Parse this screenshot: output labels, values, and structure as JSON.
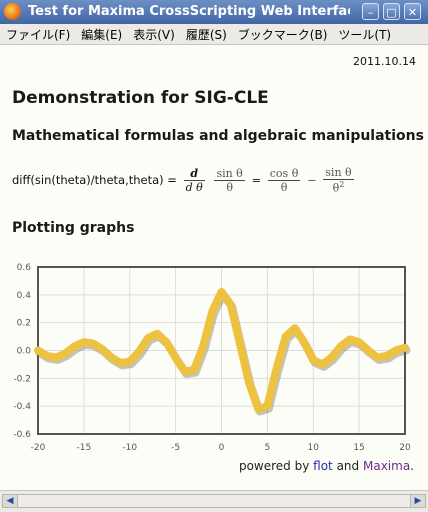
{
  "window": {
    "title": "Test for Maxima CrossScripting Web Interface",
    "minimize_glyph": "–",
    "maximize_glyph": "□",
    "close_glyph": "✕"
  },
  "menu": [
    "ファイル(F)",
    "編集(E)",
    "表示(V)",
    "履歴(S)",
    "ブックマーク(B)",
    "ツール(T)"
  ],
  "page": {
    "date": "2011.10.14",
    "heading": "Demonstration for SIG-CLE",
    "section1_heading": "Mathematical formulas and algebraic manipulations",
    "formula": {
      "input": "diff(sin(theta)/theta,theta) =",
      "d_num": "d",
      "d_den": "d θ",
      "sin_num": "sin θ",
      "sin_den": "θ",
      "eq": "=",
      "cos_num": "cos θ",
      "cos_den": "θ",
      "minus": "−",
      "sin2_num": "sin θ",
      "sin2_den": "θ",
      "exp": "2"
    },
    "section2_heading": "Plotting graphs",
    "powered": {
      "prefix": "powered by",
      "flot": "flot",
      "and": "and",
      "maxima": "Maxima",
      "suffix": "."
    }
  },
  "colors": {
    "series": "#edc240",
    "shadow": "#555555",
    "grid": "#dddddd",
    "frame": "#545454",
    "flot_link": "#2233aa",
    "maxima_link": "#6a2a8a"
  },
  "chart_data": {
    "type": "line",
    "function": "sin(x)/x shifted",
    "xlim": [
      -20,
      20
    ],
    "ylim": [
      -0.6,
      0.6
    ],
    "xticks": [
      -20,
      -15,
      -10,
      -5,
      0,
      5,
      10,
      15,
      20
    ],
    "yticks": [
      0.6,
      0.4,
      0.2,
      0.0,
      -0.2,
      -0.4,
      -0.6
    ],
    "ytick_labels": [
      "0.6",
      "0.4",
      "0.2",
      "0.0",
      "-0.2",
      "-0.4",
      "-0.6"
    ],
    "grid": true,
    "series": [
      {
        "x": [
          -20,
          -19,
          -18,
          -17,
          -16,
          -15,
          -14,
          -13,
          -12,
          -11,
          -10,
          -9,
          -8,
          -7,
          -6,
          -5,
          -4,
          -3,
          -2,
          -1,
          0,
          1,
          2,
          3,
          4,
          5,
          6,
          7,
          8,
          9,
          10,
          11,
          12,
          13,
          14,
          15,
          16,
          17,
          18,
          19,
          20
        ],
        "y": [
          0.0,
          -0.04,
          -0.05,
          -0.02,
          0.03,
          0.06,
          0.05,
          0.01,
          -0.05,
          -0.09,
          -0.08,
          -0.01,
          0.09,
          0.12,
          0.06,
          -0.05,
          -0.15,
          -0.14,
          0.03,
          0.28,
          0.42,
          0.33,
          0.05,
          -0.23,
          -0.42,
          -0.4,
          -0.13,
          0.1,
          0.16,
          0.06,
          -0.07,
          -0.1,
          -0.05,
          0.03,
          0.08,
          0.06,
          0.0,
          -0.05,
          -0.04,
          0.0,
          0.02
        ]
      }
    ]
  }
}
